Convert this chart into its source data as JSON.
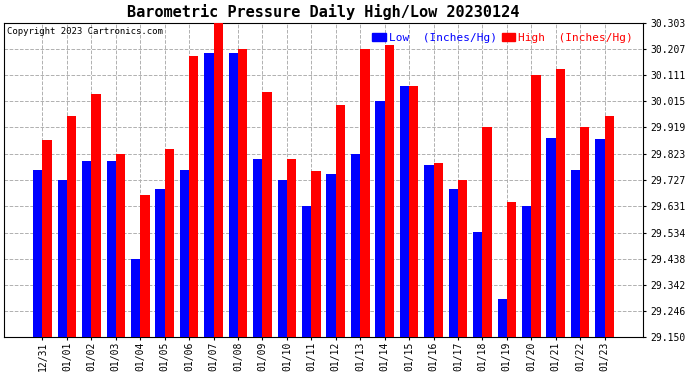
{
  "title": "Barometric Pressure Daily High/Low 20230124",
  "copyright": "Copyright 2023 Cartronics.com",
  "legend_low_label": "Low  (Inches/Hg)",
  "legend_high_label": "High  (Inches/Hg)",
  "dates": [
    "12/31",
    "01/01",
    "01/02",
    "01/03",
    "01/04",
    "01/05",
    "01/06",
    "01/07",
    "01/08",
    "01/09",
    "01/10",
    "01/11",
    "01/12",
    "01/13",
    "01/14",
    "01/15",
    "01/16",
    "01/17",
    "01/18",
    "01/19",
    "01/20",
    "01/21",
    "01/22",
    "01/23"
  ],
  "high": [
    29.874,
    29.96,
    30.04,
    29.823,
    29.671,
    29.84,
    30.18,
    30.31,
    30.207,
    30.05,
    29.805,
    29.76,
    30.0,
    30.207,
    30.22,
    30.07,
    29.79,
    29.727,
    29.92,
    29.645,
    30.111,
    30.135,
    29.92,
    29.96
  ],
  "low": [
    29.762,
    29.727,
    29.795,
    29.795,
    29.438,
    29.693,
    29.762,
    30.191,
    30.191,
    29.805,
    29.727,
    29.63,
    29.75,
    29.823,
    30.015,
    30.07,
    29.78,
    29.693,
    29.535,
    29.29,
    29.632,
    29.88,
    29.762,
    29.878
  ],
  "ylim_min": 29.15,
  "ylim_max": 30.303,
  "yticks": [
    29.15,
    29.246,
    29.342,
    29.438,
    29.534,
    29.631,
    29.727,
    29.823,
    29.919,
    30.015,
    30.111,
    30.207,
    30.303
  ],
  "bar_width": 0.38,
  "high_color": "#ff0000",
  "low_color": "#0000ff",
  "background_color": "#ffffff",
  "grid_color": "#b0b0b0",
  "title_fontsize": 11,
  "tick_fontsize": 7,
  "legend_fontsize": 8,
  "copyright_fontsize": 6.5
}
